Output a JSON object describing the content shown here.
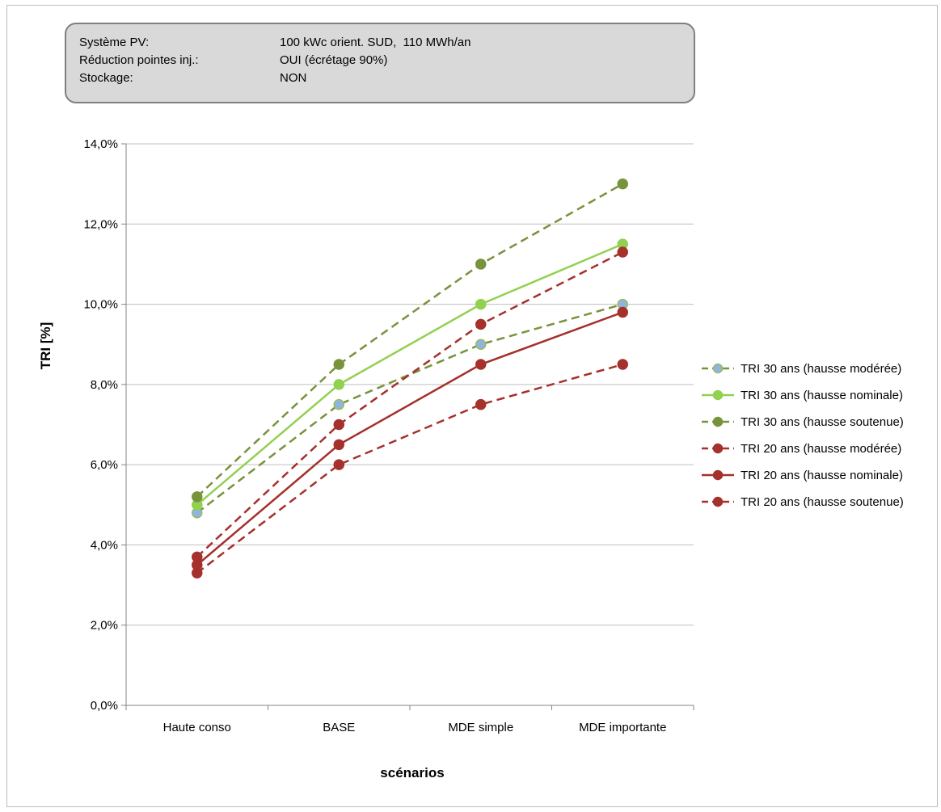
{
  "info": {
    "rows": [
      {
        "key": "Système PV:",
        "value": "100 kWc orient. SUD,  110 MWh/an"
      },
      {
        "key": "Réduction pointes inj.:",
        "value": "OUI (écrétage 90%)"
      },
      {
        "key": "Stockage:",
        "value": "NON"
      }
    ]
  },
  "chart_data": {
    "type": "line",
    "title": "",
    "xlabel": "scénarios",
    "ylabel": "TRI [%]",
    "categories": [
      "Haute conso",
      "BASE",
      "MDE simple",
      "MDE importante"
    ],
    "ylim": [
      0,
      14
    ],
    "yticks": [
      0,
      2,
      4,
      6,
      8,
      10,
      12,
      14
    ],
    "ytick_labels": [
      "0,0%",
      "2,0%",
      "4,0%",
      "6,0%",
      "8,0%",
      "10,0%",
      "12,0%",
      "14,0%"
    ],
    "grid": true,
    "legend_position": "right",
    "series": [
      {
        "name": "TRI 30 ans (hausse modérée)",
        "values": [
          4.8,
          7.5,
          9.0,
          10.0
        ],
        "color": "#77933C",
        "line": "dashed",
        "marker_color": "#8EB4E3",
        "marker_edge": "#9BBB59"
      },
      {
        "name": "TRI 30 ans (hausse nominale)",
        "values": [
          5.0,
          8.0,
          10.0,
          11.5
        ],
        "color": "#92D050",
        "line": "solid",
        "marker_color": "#92D050",
        "marker_edge": "#92D050"
      },
      {
        "name": "TRI 30 ans (hausse soutenue)",
        "values": [
          5.2,
          8.5,
          11.0,
          13.0
        ],
        "color": "#77933C",
        "line": "dashed",
        "marker_color": "#77933C",
        "marker_edge": "#77933C"
      },
      {
        "name": "TRI 20 ans (hausse modérée)",
        "values": [
          3.3,
          6.0,
          7.5,
          8.5
        ],
        "color": "#A5302C",
        "line": "dashed",
        "marker_color": "#A5302C",
        "marker_edge": "#A5302C"
      },
      {
        "name": "TRI  20 ans (hausse nominale)",
        "values": [
          3.5,
          6.5,
          8.5,
          9.8
        ],
        "color": "#A5302C",
        "line": "solid",
        "marker_color": "#A5302C",
        "marker_edge": "#A5302C"
      },
      {
        "name": "TRI 20 ans (hausse soutenue)",
        "values": [
          3.7,
          7.0,
          9.5,
          11.3
        ],
        "color": "#A5302C",
        "line": "dashed",
        "marker_color": "#A5302C",
        "marker_edge": "#A5302C"
      }
    ]
  }
}
